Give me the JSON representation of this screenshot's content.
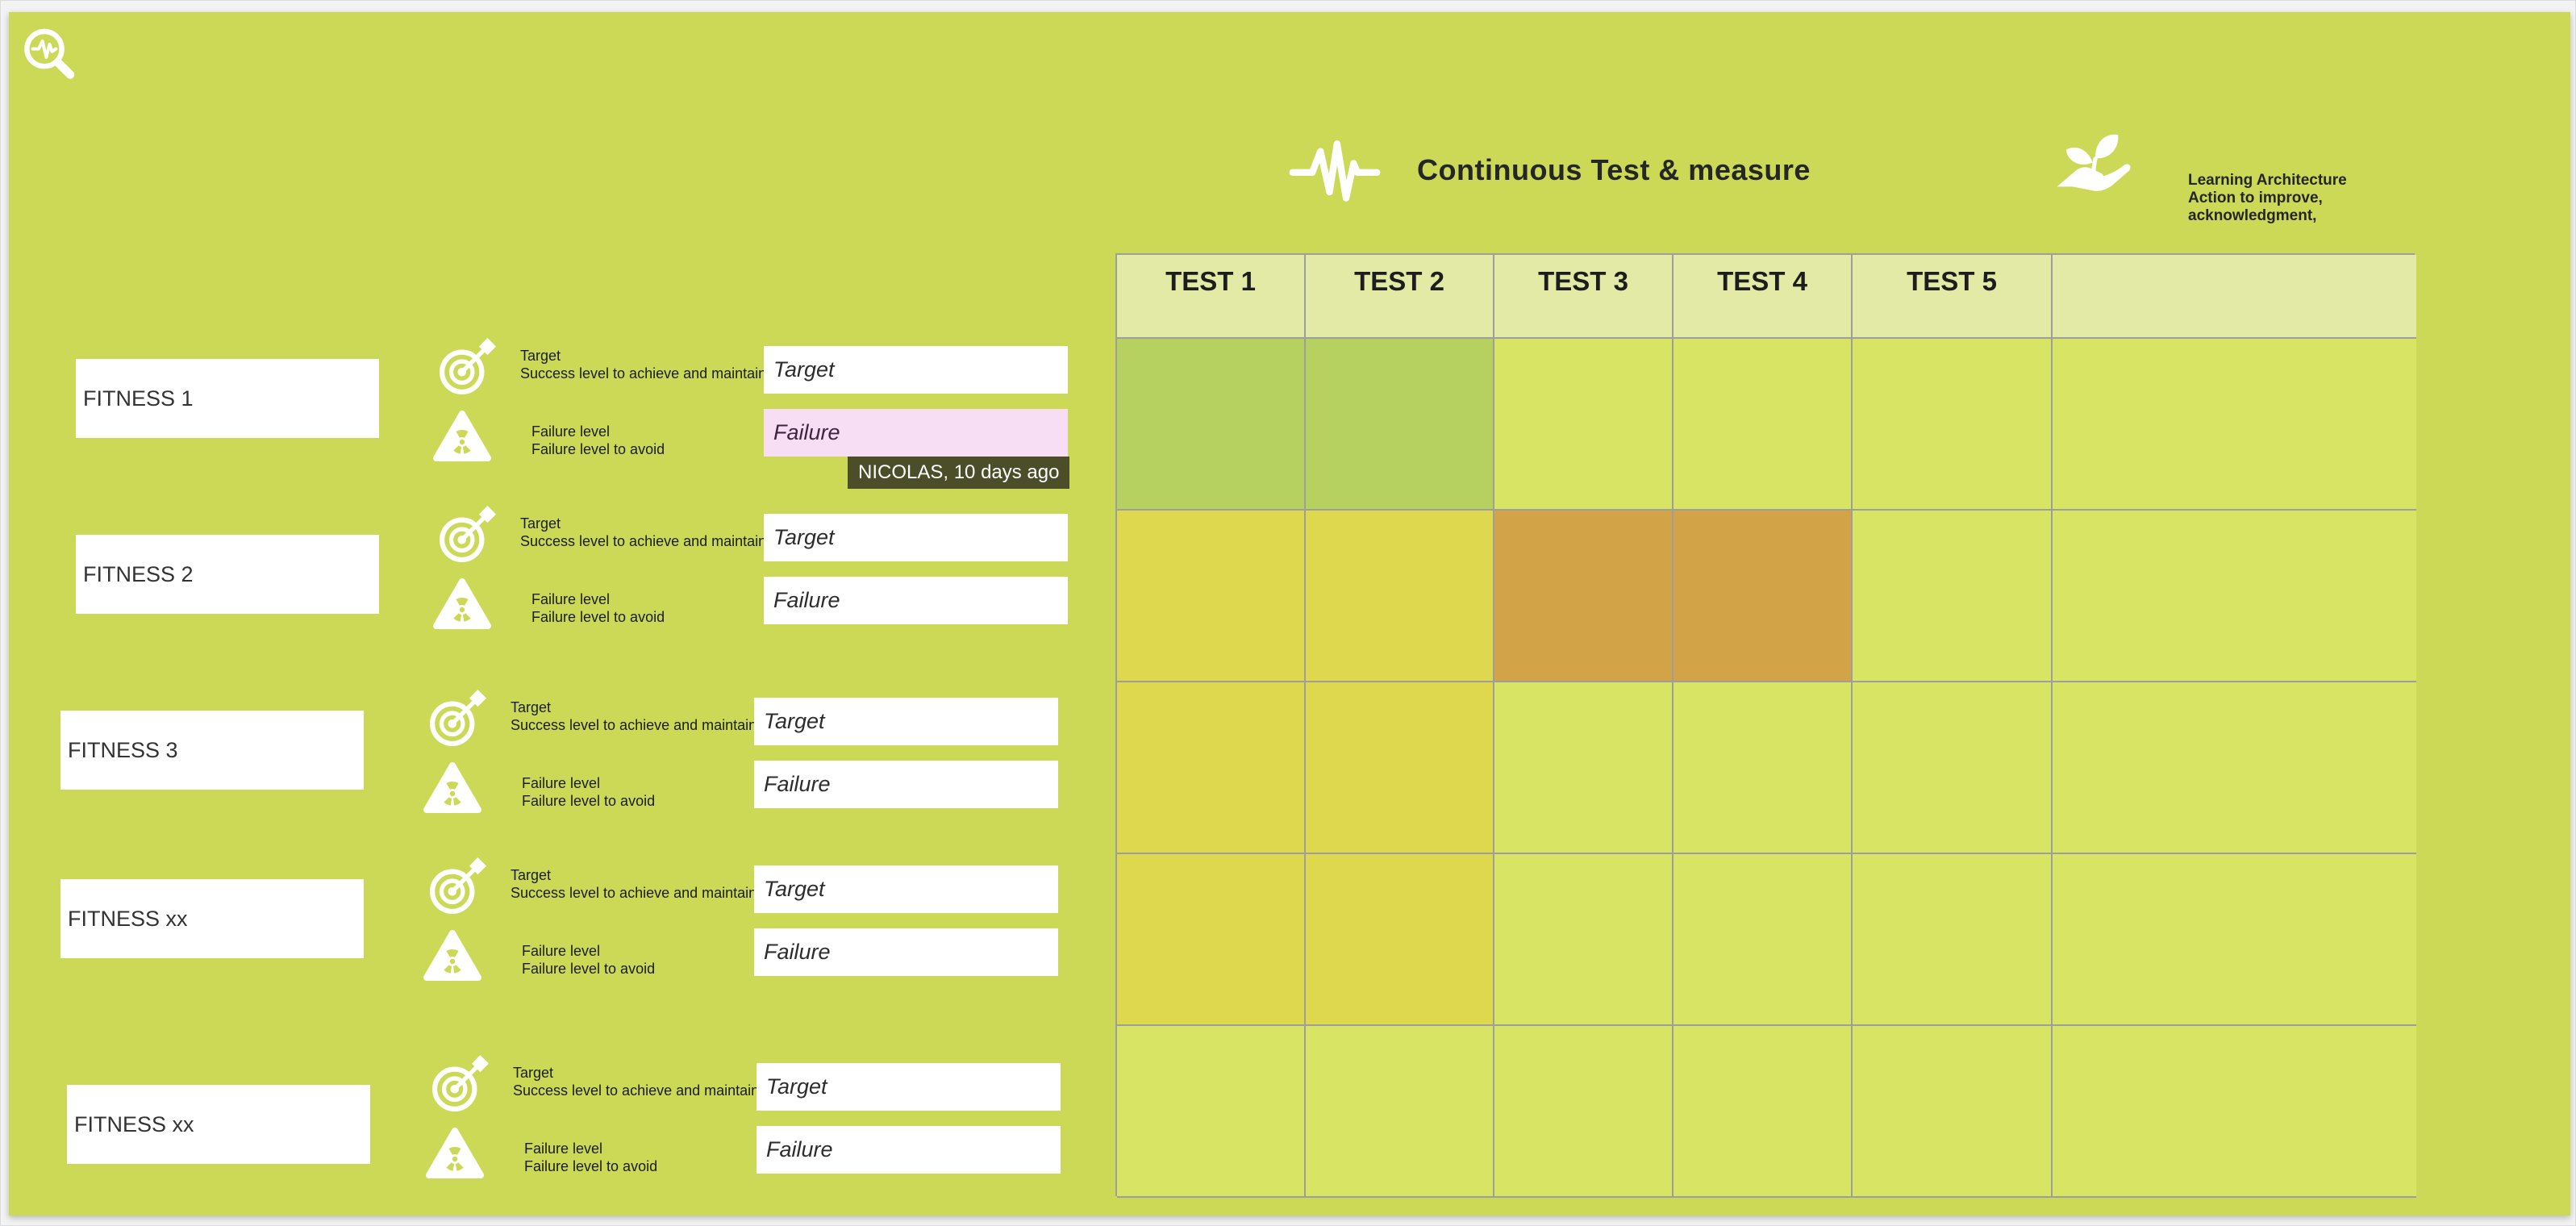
{
  "canvas": {
    "background_color": "#cbd957",
    "corner_icon": "pulse-magnifier"
  },
  "headers": {
    "test_measure": {
      "icon": "heartbeat-pulse",
      "title": "Continuous Test & measure"
    },
    "learning": {
      "icon": "hand-holding-plant",
      "lines": [
        "Learning Architecture",
        "Action to improve,",
        "acknowledgment,"
      ]
    }
  },
  "fitness_groups": [
    {
      "name": "FITNESS 1",
      "target_title": "Target",
      "target_desc": "Success level to achieve and maintain",
      "target_value": "Target",
      "failure_title": "Failure level",
      "failure_desc": "Failure level to avoid",
      "failure_value": "Failure",
      "failure_highlighted": true
    },
    {
      "name": "FITNESS 2",
      "target_title": "Target",
      "target_desc": "Success level to achieve and maintain",
      "target_value": "Target",
      "failure_title": "Failure level",
      "failure_desc": "Failure level to avoid",
      "failure_value": "Failure",
      "failure_highlighted": false
    },
    {
      "name": "FITNESS 3",
      "target_title": "Target",
      "target_desc": "Success level to achieve and maintain",
      "target_value": "Target",
      "failure_title": "Failure level",
      "failure_desc": "Failure level to avoid",
      "failure_value": "Failure",
      "failure_highlighted": false
    },
    {
      "name": "FITNESS xx",
      "target_title": "Target",
      "target_desc": "Success level to achieve and maintain",
      "target_value": "Target",
      "failure_title": "Failure level",
      "failure_desc": "Failure level to avoid",
      "failure_value": "Failure",
      "failure_highlighted": false
    },
    {
      "name": "FITNESS xx",
      "target_title": "Target",
      "target_desc": "Success level to achieve and maintain",
      "target_value": "Target",
      "failure_title": "Failure level",
      "failure_desc": "Failure level to avoid",
      "failure_value": "Failure",
      "failure_highlighted": false
    }
  ],
  "comment_tooltip": {
    "text": "NICOLAS, 10 days ago",
    "background": "#4c4e2a"
  },
  "test_grid": {
    "column_headers": [
      "TEST 1",
      "TEST 2",
      "TEST 3",
      "TEST 4",
      "TEST 5",
      ""
    ],
    "palette": {
      "header": "#e2eaa5",
      "plain": "#d7e464",
      "green": "#b6d160",
      "yellow": "#ded84f",
      "orange": "#d3a348"
    },
    "border_color": "#9e9e9e",
    "rows": [
      [
        "green",
        "green",
        "plain",
        "plain",
        "plain",
        "plain"
      ],
      [
        "yellow",
        "yellow",
        "orange",
        "orange",
        "plain",
        "plain"
      ],
      [
        "yellow",
        "yellow",
        "plain",
        "plain",
        "plain",
        "plain"
      ],
      [
        "yellow",
        "yellow",
        "plain",
        "plain",
        "plain",
        "plain"
      ],
      [
        "plain",
        "plain",
        "plain",
        "plain",
        "plain",
        "plain"
      ]
    ]
  }
}
